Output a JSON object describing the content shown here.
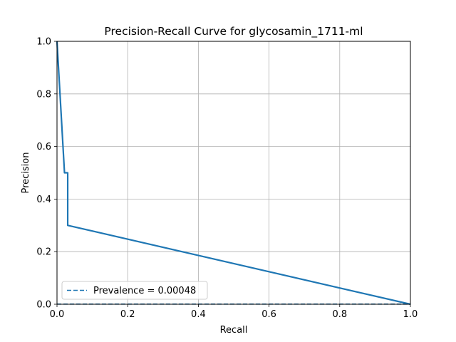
{
  "chart_data": {
    "type": "line",
    "title": "Precision-Recall Curve for glycosamin_1711-ml",
    "xlabel": "Recall",
    "ylabel": "Precision",
    "xlim": [
      0,
      1
    ],
    "ylim": [
      0,
      1
    ],
    "x_ticks": [
      "0.0",
      "0.2",
      "0.4",
      "0.6",
      "0.8",
      "1.0"
    ],
    "y_ticks": [
      "0.0",
      "0.2",
      "0.4",
      "0.6",
      "0.8",
      "1.0"
    ],
    "grid": true,
    "legend_position": "lower-left",
    "series": [
      {
        "style": "solid",
        "color": "#1f77b4",
        "points": [
          {
            "x": 0.0,
            "y": 1.0
          },
          {
            "x": 0.0212,
            "y": 0.5
          },
          {
            "x": 0.0303,
            "y": 0.5
          },
          {
            "x": 0.0303,
            "y": 0.3
          },
          {
            "x": 1.0,
            "y": 0.0
          }
        ]
      },
      {
        "name": "Prevalence = 0.00048",
        "style": "dashed",
        "color": "#1f77b4",
        "points": [
          {
            "x": 0.0,
            "y": 0.00048
          },
          {
            "x": 1.0,
            "y": 0.00048
          }
        ]
      }
    ]
  }
}
